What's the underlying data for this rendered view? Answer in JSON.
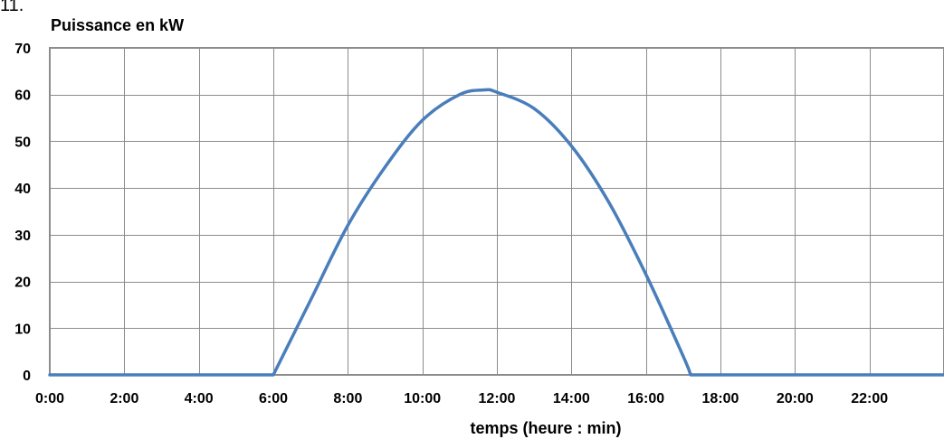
{
  "header_fragment": "11.",
  "chart_data": {
    "type": "line",
    "title": "",
    "ylabel": "Puissance en  kW",
    "xlabel": "temps (heure : min)",
    "xlim": [
      0,
      24
    ],
    "ylim": [
      0,
      70
    ],
    "x_ticks": [
      "0:00",
      "2:00",
      "4:00",
      "6:00",
      "8:00",
      "10:00",
      "12:00",
      "14:00",
      "16:00",
      "18:00",
      "20:00",
      "22:00"
    ],
    "y_ticks": [
      "0",
      "10",
      "20",
      "30",
      "40",
      "50",
      "60",
      "70"
    ],
    "grid": true,
    "legend": "none",
    "series": [
      {
        "color": "#4a7ebb",
        "x": [
          0,
          6,
          7,
          8,
          9,
          10,
          11,
          11.67,
          12,
          13,
          14,
          15,
          16,
          17,
          17.2,
          18,
          20,
          22,
          24
        ],
        "y": [
          0,
          0,
          16,
          32,
          44.5,
          54.5,
          60,
          61,
          60.5,
          57,
          49,
          37,
          21.5,
          4,
          0,
          0,
          0,
          0,
          0
        ]
      }
    ]
  }
}
